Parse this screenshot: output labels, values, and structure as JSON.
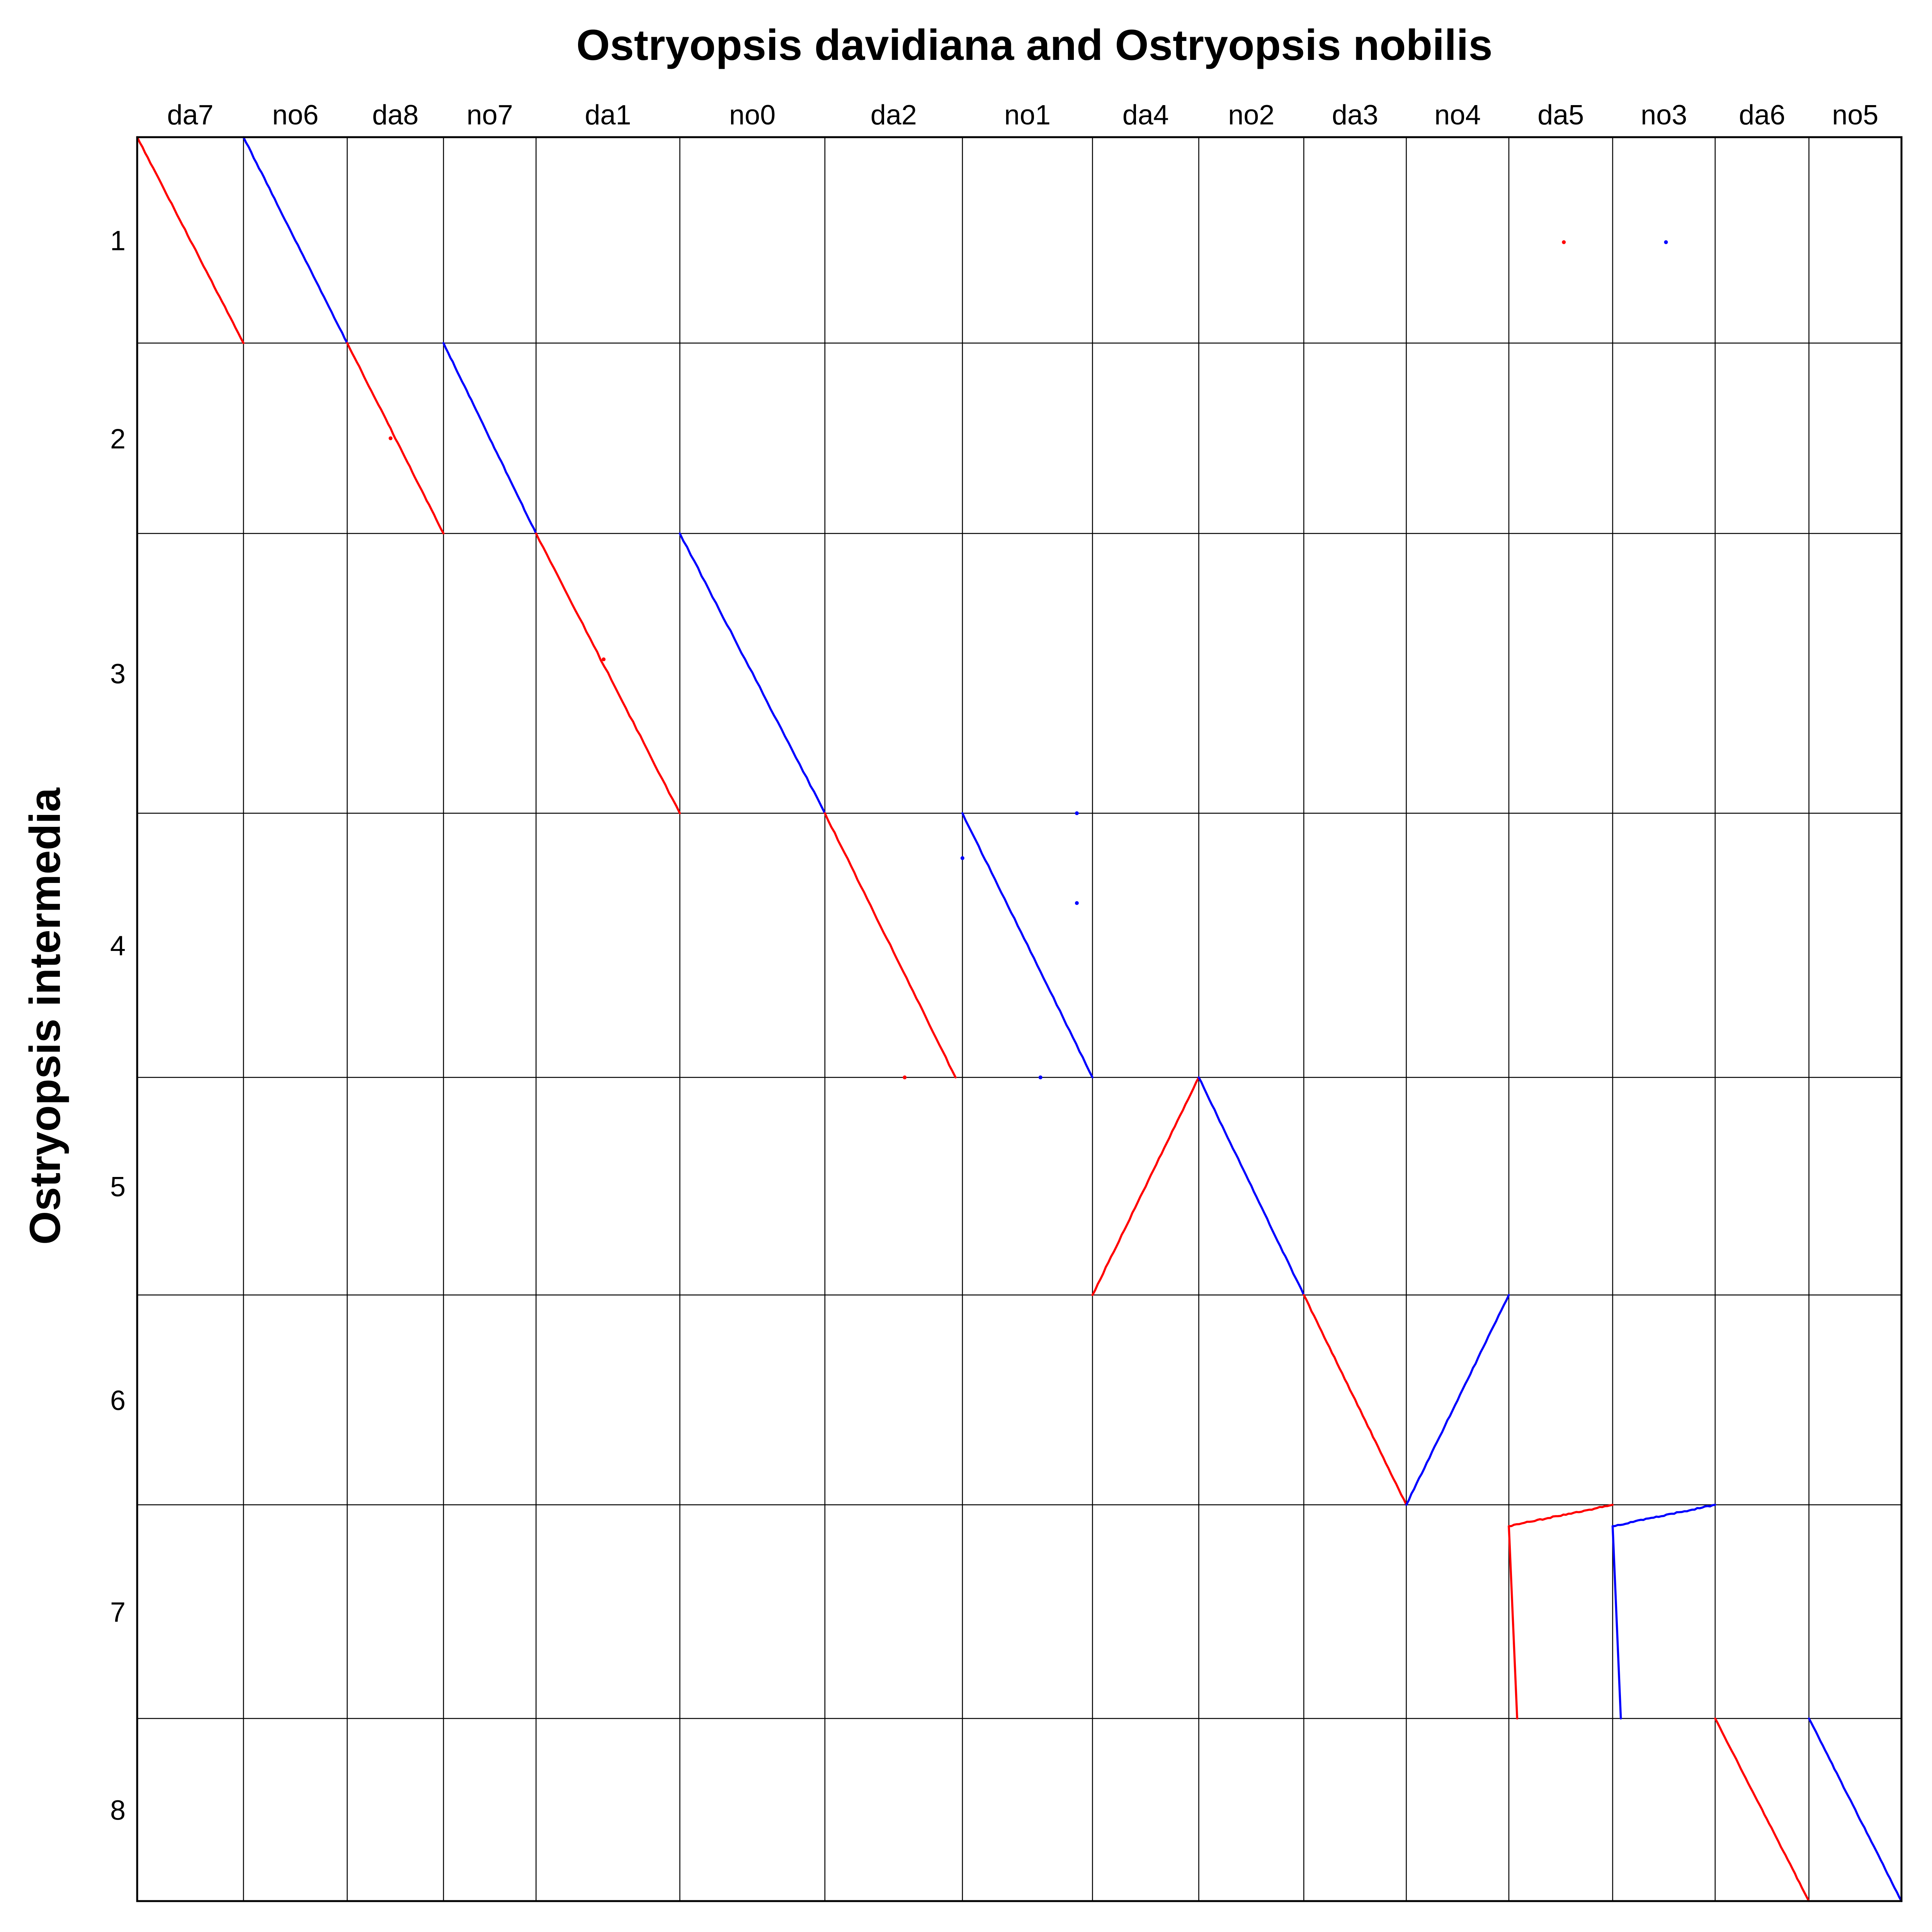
{
  "chart_data": {
    "type": "scatter",
    "title": "Ostryopsis davidiana and Ostryopsis nobilis",
    "xlabel": "",
    "ylabel": "Ostryopsis intermedia",
    "grid": true,
    "colors": {
      "da": "#ff0000",
      "no": "#0000ff",
      "grid": "#000000",
      "frame": "#000000"
    },
    "x_contigs": [
      {
        "label": "da7",
        "length": 8.5,
        "color": "#ff0000"
      },
      {
        "label": "no6",
        "length": 8.3,
        "color": "#0000ff"
      },
      {
        "label": "da8",
        "length": 7.7,
        "color": "#ff0000"
      },
      {
        "label": "no7",
        "length": 7.4,
        "color": "#0000ff"
      },
      {
        "label": "da1",
        "length": 11.5,
        "color": "#ff0000"
      },
      {
        "label": "no0",
        "length": 11.6,
        "color": "#0000ff"
      },
      {
        "label": "da2",
        "length": 11.0,
        "color": "#ff0000"
      },
      {
        "label": "no1",
        "length": 10.4,
        "color": "#0000ff"
      },
      {
        "label": "da4",
        "length": 8.5,
        "color": "#ff0000"
      },
      {
        "label": "no2",
        "length": 8.4,
        "color": "#0000ff"
      },
      {
        "label": "da3",
        "length": 8.2,
        "color": "#ff0000"
      },
      {
        "label": "no4",
        "length": 8.2,
        "color": "#0000ff"
      },
      {
        "label": "da5",
        "length": 8.3,
        "color": "#ff0000"
      },
      {
        "label": "no3",
        "length": 8.2,
        "color": "#0000ff"
      },
      {
        "label": "da6",
        "length": 7.5,
        "color": "#ff0000"
      },
      {
        "label": "no5",
        "length": 7.4,
        "color": "#0000ff"
      }
    ],
    "y_chromosomes": [
      {
        "label": "1",
        "length": 5.3
      },
      {
        "label": "2",
        "length": 4.9
      },
      {
        "label": "3",
        "length": 7.2
      },
      {
        "label": "4",
        "length": 6.8
      },
      {
        "label": "5",
        "length": 5.6
      },
      {
        "label": "6",
        "length": 5.4
      },
      {
        "label": "7",
        "length": 5.5
      },
      {
        "label": "8",
        "length": 4.7
      }
    ],
    "alignments": [
      {
        "x": "da7",
        "y": "1",
        "orientation": "forward",
        "color": "#ff0000"
      },
      {
        "x": "no6",
        "y": "1",
        "orientation": "forward",
        "color": "#0000ff"
      },
      {
        "x": "da8",
        "y": "2",
        "orientation": "forward",
        "color": "#ff0000"
      },
      {
        "x": "no7",
        "y": "2",
        "orientation": "forward",
        "color": "#0000ff"
      },
      {
        "x": "da1",
        "y": "3",
        "orientation": "forward",
        "color": "#ff0000"
      },
      {
        "x": "no0",
        "y": "3",
        "orientation": "forward",
        "color": "#0000ff"
      },
      {
        "x": "da2",
        "y": "4",
        "orientation": "forward",
        "x_end": 0.95,
        "color": "#ff0000"
      },
      {
        "x": "no1",
        "y": "4",
        "orientation": "forward",
        "color": "#0000ff"
      },
      {
        "x": "da4",
        "y": "5",
        "orientation": "reverse",
        "color": "#ff0000"
      },
      {
        "x": "no2",
        "y": "5",
        "orientation": "forward",
        "color": "#0000ff"
      },
      {
        "x": "da3",
        "y": "6",
        "orientation": "forward",
        "color": "#ff0000"
      },
      {
        "x": "no4",
        "y": "6",
        "orientation": "reverse",
        "color": "#0000ff"
      },
      {
        "x": "da5",
        "y": "7",
        "orientation": "reverse",
        "y_start": 0.9,
        "color": "#ff0000"
      },
      {
        "x": "no3",
        "y": "7",
        "orientation": "reverse",
        "y_start": 0.9,
        "color": "#0000ff"
      },
      {
        "x": "da6",
        "y": "8",
        "orientation": "forward",
        "color": "#ff0000"
      },
      {
        "x": "no5",
        "y": "8",
        "orientation": "forward",
        "color": "#0000ff"
      }
    ],
    "stray_hits": [
      {
        "x": "da5",
        "y": "1",
        "fx": 0.53,
        "fy": 0.51,
        "color": "#ff0000"
      },
      {
        "x": "no3",
        "y": "1",
        "fx": 0.52,
        "fy": 0.51,
        "color": "#0000ff"
      },
      {
        "x": "no1",
        "y": "4",
        "fx": 0.88,
        "fy": 0.34,
        "color": "#0000ff"
      },
      {
        "x": "no1",
        "y": "4",
        "fx": 0.88,
        "fy": 0.0,
        "color": "#0000ff"
      },
      {
        "x": "no1",
        "y": "4",
        "fx": 0.0,
        "fy": 0.17,
        "color": "#0000ff"
      },
      {
        "x": "da2",
        "y": "4",
        "fx": 0.58,
        "fy": 1.0,
        "color": "#ff0000"
      },
      {
        "x": "no1",
        "y": "4",
        "fx": 0.6,
        "fy": 1.0,
        "color": "#0000ff"
      },
      {
        "x": "da8",
        "y": "2",
        "fx": 0.45,
        "fy": 0.5,
        "color": "#ff0000"
      },
      {
        "x": "da1",
        "y": "3",
        "fx": 0.47,
        "fy": 0.45,
        "color": "#ff0000"
      }
    ]
  }
}
